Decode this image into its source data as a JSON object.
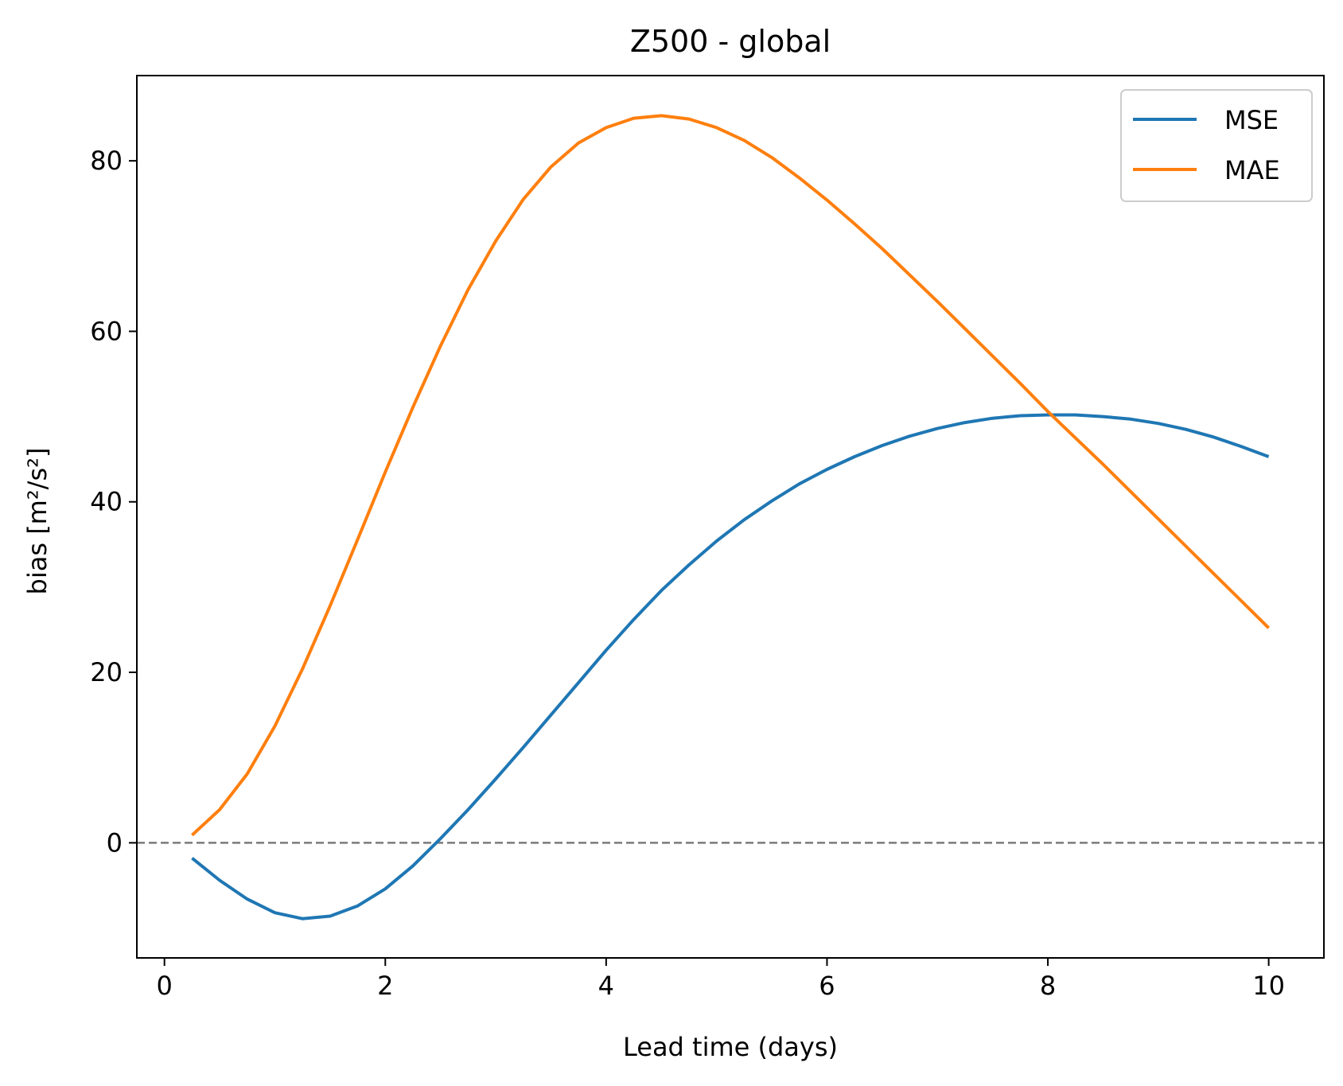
{
  "chart_data": {
    "type": "line",
    "title": "Z500 - global",
    "xlabel": "Lead time (days)",
    "ylabel": "bias [m²/s²]",
    "xlim": [
      -0.25,
      10.5
    ],
    "ylim": [
      -13.5,
      90
    ],
    "xticks": [
      0,
      2,
      4,
      6,
      8,
      10
    ],
    "yticks": [
      0,
      20,
      40,
      60,
      80
    ],
    "grid": false,
    "legend_position": "top-right",
    "reference_line": {
      "y": 0,
      "style": "dashed",
      "color": "#808080"
    },
    "x": [
      0.25,
      0.5,
      0.75,
      1.0,
      1.25,
      1.5,
      1.75,
      2.0,
      2.25,
      2.5,
      2.75,
      3.0,
      3.25,
      3.5,
      3.75,
      4.0,
      4.25,
      4.5,
      4.75,
      5.0,
      5.25,
      5.5,
      5.75,
      6.0,
      6.25,
      6.5,
      6.75,
      7.0,
      7.25,
      7.5,
      7.75,
      8.0,
      8.25,
      8.5,
      8.75,
      9.0,
      9.25,
      9.5,
      9.75,
      10.0
    ],
    "series": [
      {
        "name": "MSE",
        "color": "#1f77b4",
        "values": [
          -1.8,
          -4.4,
          -6.6,
          -8.2,
          -8.9,
          -8.6,
          -7.4,
          -5.4,
          -2.7,
          0.5,
          3.9,
          7.5,
          11.2,
          15.0,
          18.8,
          22.6,
          26.2,
          29.6,
          32.6,
          35.4,
          37.9,
          40.1,
          42.1,
          43.8,
          45.3,
          46.6,
          47.7,
          48.6,
          49.3,
          49.8,
          50.1,
          50.2,
          50.2,
          50.0,
          49.7,
          49.2,
          48.5,
          47.6,
          46.5,
          45.3
        ]
      },
      {
        "name": "MAE",
        "color": "#ff7f0e",
        "values": [
          0.9,
          3.9,
          8.1,
          13.7,
          20.4,
          27.8,
          35.6,
          43.5,
          51.1,
          58.3,
          64.9,
          70.6,
          75.5,
          79.3,
          82.1,
          83.9,
          85.0,
          85.3,
          84.9,
          83.9,
          82.4,
          80.4,
          78.0,
          75.4,
          72.6,
          69.7,
          66.6,
          63.5,
          60.3,
          57.1,
          53.9,
          50.6,
          47.5,
          44.4,
          41.2,
          38.0,
          34.8,
          31.6,
          28.4,
          25.2
        ]
      }
    ]
  }
}
